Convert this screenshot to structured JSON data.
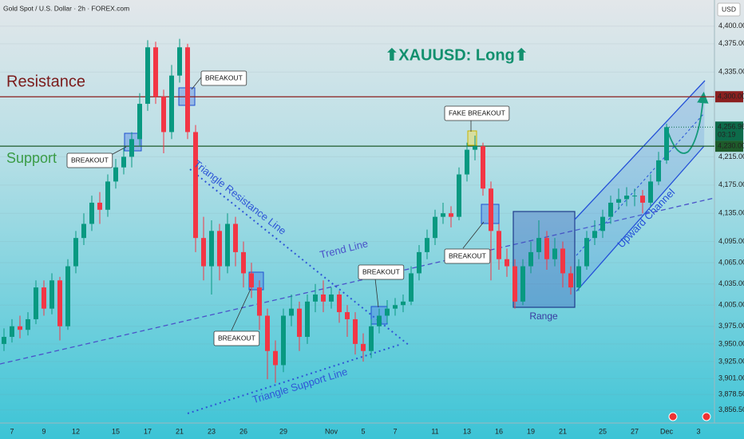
{
  "chart_data": {
    "type": "candlestick",
    "header": "Gold Spot / U.S. Dollar · 2h · FOREX.com",
    "currency": "USD",
    "title": "⬆XAUUSD: Long⬆",
    "up_color": "#089981",
    "down_color": "#f23645",
    "grid": true,
    "ylim": [
      3838,
      4437
    ],
    "yticks": [
      {
        "value": 4400,
        "label": "4,400.00"
      },
      {
        "value": 4375,
        "label": "4,375.00"
      },
      {
        "value": 4335,
        "label": "4,335.00"
      },
      {
        "value": 4215,
        "label": "4,215.00"
      },
      {
        "value": 4175,
        "label": "4,175.00"
      },
      {
        "value": 4135,
        "label": "4,135.00"
      },
      {
        "value": 4095,
        "label": "4,095.00"
      },
      {
        "value": 4065,
        "label": "4,065.00"
      },
      {
        "value": 4035,
        "label": "4,035.00"
      },
      {
        "value": 4005,
        "label": "4,005.00"
      },
      {
        "value": 3975,
        "label": "3,975.00"
      },
      {
        "value": 3950,
        "label": "3,950.00"
      },
      {
        "value": 3925,
        "label": "3,925.00"
      },
      {
        "value": 3901,
        "label": "3,901.00"
      },
      {
        "value": 3878.5,
        "label": "3,878.50"
      },
      {
        "value": 3856.5,
        "label": "3,856.50"
      }
    ],
    "hlines": [
      {
        "name": "Resistance",
        "value": 4300,
        "label": "4,300.00",
        "color": "#8b1f1f"
      },
      {
        "name": "Support",
        "value": 4230,
        "label": "4,230.00",
        "color": "#1e5b2a"
      }
    ],
    "last_price": {
      "value": 4256.96,
      "label": "4,256.96",
      "countdown": "03:19",
      "color": "#0d6b4a"
    },
    "categories": [
      null,
      "7",
      null,
      null,
      null,
      "9",
      null,
      null,
      null,
      "12",
      null,
      null,
      null,
      null,
      "15",
      null,
      null,
      null,
      "17",
      null,
      null,
      null,
      "21",
      null,
      null,
      null,
      "23",
      null,
      null,
      null,
      "26",
      null,
      null,
      null,
      null,
      "29",
      null,
      null,
      null,
      null,
      null,
      "Nov",
      null,
      null,
      null,
      "5",
      null,
      null,
      null,
      "7",
      null,
      null,
      null,
      null,
      "11",
      null,
      null,
      null,
      "13",
      null,
      null,
      null,
      "16",
      null,
      null,
      null,
      "19",
      null,
      null,
      null,
      "21",
      null,
      null,
      null,
      null,
      "25",
      null,
      null,
      null,
      "27",
      null,
      null,
      null,
      "Dec",
      null,
      null,
      null,
      "3"
    ],
    "open": [
      3950,
      3960,
      3975,
      3970,
      3985,
      4030,
      4000,
      4040,
      3975,
      4060,
      4100,
      4120,
      4150,
      4140,
      4180,
      4200,
      4215,
      4240,
      4290,
      4370,
      4300,
      4250,
      4330,
      4370,
      4250,
      4100,
      4060,
      4110,
      4060,
      4120,
      4080,
      4050,
      4030,
      3990,
      3940,
      3920,
      3990,
      4000,
      3960,
      4010,
      4020,
      4010,
      4020,
      3995,
      3985,
      3950,
      3940,
      3975,
      3990,
      4000,
      4005,
      4010,
      4050,
      4080,
      4100,
      4130,
      4135,
      4130,
      4190,
      4225,
      4230,
      4170,
      4110,
      4070,
      4060,
      4010,
      4060,
      4080,
      4100,
      4070,
      4085,
      4050,
      4030,
      4060,
      4100,
      4110,
      4130,
      4150,
      4155,
      4160,
      4160,
      4150,
      4180,
      4210,
      null,
      null,
      null,
      null
    ],
    "high": [
      3972,
      3985,
      3990,
      3995,
      4040,
      4040,
      4050,
      4045,
      4070,
      4110,
      4135,
      4160,
      4165,
      4190,
      4212,
      4228,
      4250,
      4305,
      4380,
      4378,
      4310,
      4345,
      4382,
      4375,
      4260,
      4130,
      4125,
      4120,
      4135,
      4130,
      4095,
      4065,
      4040,
      4000,
      3955,
      4000,
      4020,
      4010,
      4020,
      4035,
      4040,
      4030,
      4025,
      4005,
      3995,
      3965,
      3985,
      4000,
      4012,
      4015,
      4020,
      4060,
      4090,
      4112,
      4140,
      4150,
      4145,
      4200,
      4235,
      4245,
      4235,
      4180,
      4120,
      4085,
      4070,
      4070,
      4095,
      4125,
      4110,
      4100,
      4095,
      4060,
      4070,
      4110,
      4125,
      4140,
      4160,
      4170,
      4172,
      4170,
      4168,
      4190,
      4222,
      4262,
      null,
      null,
      null,
      null
    ],
    "low": [
      3940,
      3952,
      3958,
      3962,
      3978,
      3990,
      3992,
      3955,
      3970,
      4050,
      4090,
      4110,
      4120,
      4130,
      4170,
      4190,
      4200,
      4230,
      4280,
      4290,
      4220,
      4240,
      4320,
      4240,
      4080,
      4040,
      4020,
      4040,
      4050,
      4060,
      4030,
      4015,
      3970,
      3900,
      3895,
      3910,
      3975,
      3940,
      3950,
      3995,
      3995,
      4000,
      3980,
      3960,
      3935,
      3925,
      3930,
      3965,
      3980,
      3990,
      3995,
      4005,
      4040,
      4070,
      4090,
      4120,
      4115,
      4125,
      4180,
      4210,
      4160,
      4040,
      4055,
      4045,
      4000,
      4005,
      4050,
      4070,
      4055,
      4060,
      4030,
      4020,
      4025,
      4055,
      4090,
      4100,
      4120,
      4140,
      4145,
      4145,
      4135,
      4145,
      4175,
      4205,
      null,
      null,
      null,
      null
    ],
    "close": [
      3960,
      3975,
      3970,
      3985,
      4030,
      4000,
      4040,
      3975,
      4060,
      4100,
      4120,
      4150,
      4140,
      4180,
      4200,
      4215,
      4240,
      4290,
      4370,
      4300,
      4250,
      4330,
      4370,
      4250,
      4100,
      4060,
      4110,
      4060,
      4120,
      4080,
      4050,
      4030,
      3990,
      3940,
      3920,
      3990,
      4000,
      3960,
      4010,
      4020,
      4010,
      4020,
      3995,
      3985,
      3950,
      3940,
      3975,
      3990,
      4000,
      4005,
      4010,
      4050,
      4080,
      4100,
      4130,
      4135,
      4130,
      4190,
      4225,
      4230,
      4170,
      4110,
      4070,
      4060,
      4010,
      4060,
      4080,
      4100,
      4070,
      4085,
      4050,
      4030,
      4060,
      4100,
      4110,
      4130,
      4150,
      4155,
      4160,
      4160,
      4150,
      4180,
      4210,
      4256.96,
      null,
      null,
      null,
      null
    ],
    "annotations": [
      "BREAKOUT",
      "BREAKOUT",
      "BREAKOUT",
      "BREAKOUT",
      "BREAKOUT",
      "FAKE BREAKOUT"
    ],
    "line_labels": [
      "Triangle Resistance Line",
      "Trend Line",
      "Triangle Support Line",
      "Range",
      "Upward Channel"
    ]
  }
}
